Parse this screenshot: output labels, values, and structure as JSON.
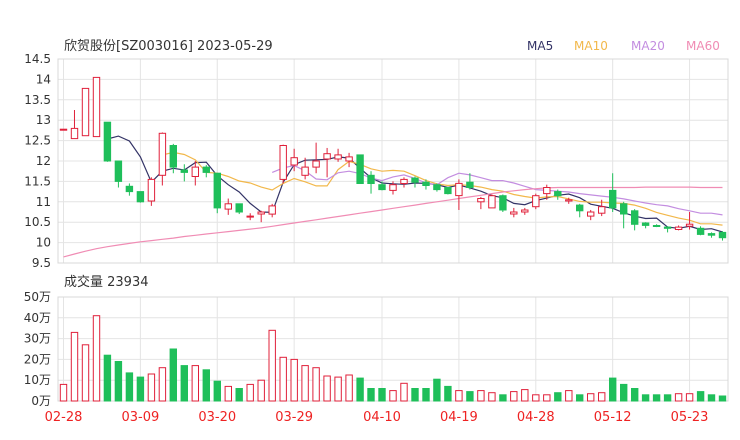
{
  "title": "欣贺股份[SZ003016] 2023-05-29",
  "legend": [
    {
      "label": "MA5",
      "color": "#333366"
    },
    {
      "label": "MA10",
      "color": "#f2b84b"
    },
    {
      "label": "MA20",
      "color": "#c38de0"
    },
    {
      "label": "MA60",
      "color": "#f08cb4"
    }
  ],
  "colors": {
    "up": "#e0203a",
    "down": "#1fbf5a",
    "grid": "#e4e4e4",
    "axis_text": "#333333",
    "date_text": "#ee2222"
  },
  "volume_title": "成交量 23934",
  "chart_data": [
    {
      "type": "candlestick",
      "title": "欣贺股份[SZ003016] 2023-05-29",
      "yticks": [
        "14.5",
        "14",
        "13.5",
        "13",
        "12.5",
        "12",
        "11.5",
        "11",
        "10.5",
        "10",
        "9.5"
      ],
      "ylim": [
        9.5,
        14.5
      ],
      "xticks": [
        {
          "label": "02-28",
          "index": 0
        },
        {
          "label": "03-09",
          "index": 7
        },
        {
          "label": "03-20",
          "index": 14
        },
        {
          "label": "03-29",
          "index": 21
        },
        {
          "label": "04-10",
          "index": 29
        },
        {
          "label": "04-19",
          "index": 36
        },
        {
          "label": "04-28",
          "index": 43
        },
        {
          "label": "05-12",
          "index": 50
        },
        {
          "label": "05-23",
          "index": 57
        }
      ],
      "series_candles": [
        [
          12.78,
          12.78,
          12.78,
          12.78
        ],
        [
          12.55,
          12.55,
          12.8,
          13.25
        ],
        [
          12.62,
          12.62,
          13.78,
          13.78
        ],
        [
          12.6,
          12.6,
          14.05,
          14.05
        ],
        [
          12.95,
          11.98,
          12.0,
          12.95
        ],
        [
          12.0,
          11.35,
          11.5,
          12.0
        ],
        [
          11.38,
          11.15,
          11.25,
          11.45
        ],
        [
          11.25,
          10.98,
          11.0,
          11.25
        ],
        [
          11.02,
          10.9,
          11.55,
          11.6
        ],
        [
          11.65,
          11.4,
          12.68,
          12.7
        ],
        [
          12.38,
          11.7,
          11.85,
          12.42
        ],
        [
          11.78,
          11.5,
          11.72,
          11.92
        ],
        [
          11.62,
          11.4,
          11.85,
          12.0
        ],
        [
          11.85,
          11.6,
          11.72,
          11.9
        ],
        [
          11.7,
          10.72,
          10.85,
          11.7
        ],
        [
          10.82,
          10.68,
          10.95,
          11.08
        ],
        [
          10.95,
          10.7,
          10.75,
          10.95
        ],
        [
          10.65,
          10.55,
          10.65,
          10.72
        ],
        [
          10.7,
          10.5,
          10.75,
          10.78
        ],
        [
          10.7,
          10.62,
          10.9,
          10.95
        ],
        [
          11.55,
          11.45,
          12.38,
          12.4
        ],
        [
          11.9,
          11.75,
          12.08,
          12.3
        ],
        [
          11.65,
          11.55,
          11.85,
          12.08
        ],
        [
          11.85,
          11.7,
          12.0,
          12.45
        ],
        [
          12.05,
          11.6,
          12.18,
          12.32
        ],
        [
          12.05,
          11.98,
          12.15,
          12.3
        ],
        [
          12.0,
          11.85,
          12.1,
          12.2
        ],
        [
          12.15,
          11.48,
          11.45,
          12.15
        ],
        [
          11.65,
          11.2,
          11.45,
          11.75
        ],
        [
          11.42,
          11.28,
          11.3,
          11.5
        ],
        [
          11.28,
          11.18,
          11.42,
          11.5
        ],
        [
          11.45,
          11.35,
          11.55,
          11.6
        ],
        [
          11.58,
          11.35,
          11.48,
          11.62
        ],
        [
          11.48,
          11.3,
          11.4,
          11.55
        ],
        [
          11.42,
          11.25,
          11.3,
          11.45
        ],
        [
          11.35,
          11.18,
          11.2,
          11.35
        ],
        [
          11.15,
          10.8,
          11.45,
          11.55
        ],
        [
          11.48,
          11.3,
          11.35,
          11.7
        ],
        [
          11.0,
          10.82,
          11.08,
          11.12
        ],
        [
          10.85,
          10.85,
          11.15,
          11.18
        ],
        [
          11.15,
          10.75,
          10.8,
          11.18
        ],
        [
          10.7,
          10.62,
          10.75,
          10.85
        ],
        [
          10.75,
          10.68,
          10.8,
          10.85
        ],
        [
          10.88,
          10.82,
          11.15,
          11.2
        ],
        [
          11.2,
          11.05,
          11.35,
          11.42
        ],
        [
          11.25,
          11.05,
          11.15,
          11.3
        ],
        [
          11.02,
          10.95,
          11.05,
          11.1
        ],
        [
          10.92,
          10.62,
          10.78,
          10.95
        ],
        [
          10.65,
          10.55,
          10.75,
          10.8
        ],
        [
          10.72,
          10.65,
          10.88,
          11.05
        ],
        [
          11.28,
          10.75,
          10.85,
          11.7
        ],
        [
          10.95,
          10.35,
          10.7,
          11.0
        ],
        [
          10.78,
          10.3,
          10.45,
          10.82
        ],
        [
          10.48,
          10.35,
          10.42,
          10.5
        ],
        [
          10.42,
          10.38,
          10.4,
          10.45
        ],
        [
          10.38,
          10.25,
          10.35,
          10.4
        ],
        [
          10.32,
          10.3,
          10.38,
          10.42
        ],
        [
          10.4,
          10.32,
          10.45,
          10.75
        ],
        [
          10.35,
          10.18,
          10.2,
          10.4
        ],
        [
          10.22,
          10.12,
          10.18,
          10.25
        ],
        [
          10.25,
          10.05,
          10.12,
          10.28
        ]
      ],
      "ma": {
        "MA5": [
          null,
          null,
          null,
          null,
          12.54,
          12.61,
          12.49,
          12.1,
          11.48,
          11.75,
          11.82,
          11.78,
          11.96,
          11.97,
          11.64,
          11.42,
          11.24,
          10.96,
          10.75,
          10.74,
          11.48,
          11.91,
          12.02,
          12.03,
          12.04,
          12.1,
          12.07,
          11.82,
          11.59,
          11.46,
          11.44,
          11.43,
          11.46,
          11.45,
          11.42,
          11.35,
          11.41,
          11.34,
          11.26,
          11.15,
          11.1,
          10.96,
          10.93,
          11.03,
          11.09,
          11.16,
          11.19,
          11.1,
          10.94,
          10.89,
          10.84,
          10.73,
          10.65,
          10.59,
          10.6,
          10.38,
          10.35,
          10.4,
          10.32,
          10.34,
          10.26
        ],
        "MA10": [
          null,
          null,
          null,
          null,
          null,
          null,
          null,
          null,
          null,
          12.15,
          12.21,
          12.16,
          12.03,
          11.72,
          11.7,
          11.62,
          11.51,
          11.46,
          11.36,
          11.29,
          11.45,
          11.57,
          11.49,
          11.39,
          11.39,
          11.79,
          11.99,
          11.92,
          11.81,
          11.75,
          11.77,
          11.75,
          11.64,
          11.52,
          11.44,
          11.4,
          11.42,
          11.4,
          11.36,
          11.3,
          11.26,
          11.18,
          11.13,
          11.09,
          11.12,
          11.13,
          11.07,
          11.01,
          10.99,
          10.99,
          10.97,
          10.96,
          10.92,
          10.84,
          10.74,
          10.67,
          10.6,
          10.55,
          10.46,
          10.46,
          10.43
        ],
        "MA20": [
          null,
          null,
          null,
          null,
          null,
          null,
          null,
          null,
          null,
          null,
          null,
          null,
          null,
          null,
          null,
          null,
          null,
          null,
          null,
          11.72,
          11.83,
          11.89,
          11.76,
          11.56,
          11.54,
          11.71,
          11.75,
          11.69,
          11.58,
          11.52,
          11.61,
          11.66,
          11.57,
          11.46,
          11.42,
          11.59,
          11.7,
          11.66,
          11.59,
          11.52,
          11.52,
          11.46,
          11.38,
          11.3,
          11.28,
          11.26,
          11.24,
          11.2,
          11.17,
          11.14,
          11.11,
          11.07,
          11.02,
          10.97,
          10.93,
          10.9,
          10.83,
          10.78,
          10.72,
          10.72,
          10.68
        ],
        "MA60": [
          9.65,
          9.72,
          9.79,
          9.85,
          9.9,
          9.94,
          9.98,
          10.02,
          10.05,
          10.08,
          10.11,
          10.15,
          10.18,
          10.21,
          10.24,
          10.27,
          10.3,
          10.33,
          10.36,
          10.4,
          10.44,
          10.48,
          10.52,
          10.56,
          10.6,
          10.64,
          10.68,
          10.72,
          10.76,
          10.8,
          10.84,
          10.88,
          10.92,
          10.96,
          11.0,
          11.04,
          11.08,
          11.12,
          11.16,
          11.2,
          11.24,
          11.27,
          11.3,
          11.32,
          11.34,
          11.35,
          11.35,
          11.35,
          11.35,
          11.35,
          11.35,
          11.35,
          11.35,
          11.36,
          11.36,
          11.36,
          11.36,
          11.36,
          11.35,
          11.35,
          11.35
        ]
      }
    },
    {
      "type": "bar",
      "title": "成交量 23934",
      "yticks": [
        "50万",
        "40万",
        "30万",
        "20万",
        "10万",
        "0万"
      ],
      "ylim": [
        0,
        50
      ],
      "unit": "万",
      "values": [
        8,
        33,
        27,
        41,
        22,
        19,
        13.5,
        11.5,
        13,
        16,
        25,
        17,
        17,
        15,
        9.5,
        7,
        6,
        8,
        10,
        34,
        21,
        20,
        17,
        16,
        12,
        11.5,
        12.5,
        11,
        6,
        6,
        5,
        8.5,
        6,
        6,
        10.5,
        7,
        5,
        4.5,
        5,
        4,
        3,
        4.5,
        5.5,
        3,
        3,
        4,
        5,
        3,
        3.5,
        4,
        11,
        8,
        6,
        3,
        3,
        3,
        3.5,
        3.5,
        4.5,
        3,
        2.4
      ]
    }
  ]
}
